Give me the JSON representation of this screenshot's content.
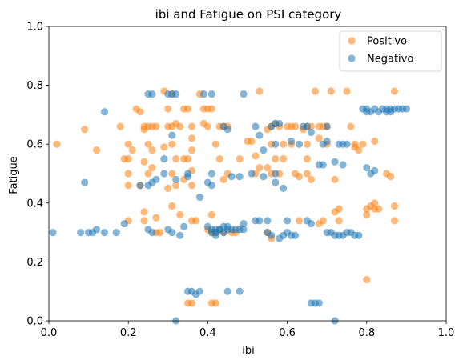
{
  "chart_data": {
    "type": "scatter",
    "title": "ibi and Fatigue on PSI category",
    "xlabel": "ibi",
    "ylabel": "Fatigue",
    "xlim": [
      0,
      1
    ],
    "ylim": [
      0,
      1
    ],
    "xticks": [
      "0.0",
      "0.2",
      "0.4",
      "0.6",
      "0.8",
      "1.0"
    ],
    "yticks": [
      "0.0",
      "0.2",
      "0.4",
      "0.6",
      "0.8",
      "1.0"
    ],
    "grid": false,
    "legend_position": "top-right",
    "series": [
      {
        "name": "Positivo",
        "color": "#ff7f0e",
        "points": [
          [
            0.02,
            0.6
          ],
          [
            0.09,
            0.65
          ],
          [
            0.12,
            0.58
          ],
          [
            0.18,
            0.66
          ],
          [
            0.19,
            0.55
          ],
          [
            0.2,
            0.55
          ],
          [
            0.2,
            0.6
          ],
          [
            0.21,
            0.58
          ],
          [
            0.2,
            0.5
          ],
          [
            0.2,
            0.46
          ],
          [
            0.2,
            0.34
          ],
          [
            0.22,
            0.72
          ],
          [
            0.23,
            0.71
          ],
          [
            0.24,
            0.66
          ],
          [
            0.24,
            0.65
          ],
          [
            0.25,
            0.66
          ],
          [
            0.26,
            0.66
          ],
          [
            0.27,
            0.66
          ],
          [
            0.25,
            0.6
          ],
          [
            0.26,
            0.58
          ],
          [
            0.24,
            0.54
          ],
          [
            0.25,
            0.5
          ],
          [
            0.26,
            0.52
          ],
          [
            0.23,
            0.46
          ],
          [
            0.24,
            0.37
          ],
          [
            0.24,
            0.34
          ],
          [
            0.27,
            0.35
          ],
          [
            0.27,
            0.3
          ],
          [
            0.28,
            0.3
          ],
          [
            0.29,
            0.78
          ],
          [
            0.31,
            0.77
          ],
          [
            0.3,
            0.72
          ],
          [
            0.3,
            0.66
          ],
          [
            0.31,
            0.66
          ],
          [
            0.32,
            0.67
          ],
          [
            0.31,
            0.6
          ],
          [
            0.32,
            0.55
          ],
          [
            0.29,
            0.59
          ],
          [
            0.3,
            0.45
          ],
          [
            0.31,
            0.5
          ],
          [
            0.32,
            0.46
          ],
          [
            0.31,
            0.39
          ],
          [
            0.33,
            0.36
          ],
          [
            0.33,
            0.66
          ],
          [
            0.34,
            0.72
          ],
          [
            0.35,
            0.72
          ],
          [
            0.36,
            0.66
          ],
          [
            0.36,
            0.62
          ],
          [
            0.36,
            0.58
          ],
          [
            0.34,
            0.55
          ],
          [
            0.35,
            0.55
          ],
          [
            0.36,
            0.51
          ],
          [
            0.34,
            0.48
          ],
          [
            0.36,
            0.46
          ],
          [
            0.36,
            0.34
          ],
          [
            0.37,
            0.34
          ],
          [
            0.35,
            0.06
          ],
          [
            0.36,
            0.06
          ],
          [
            0.38,
            0.77
          ],
          [
            0.39,
            0.72
          ],
          [
            0.4,
            0.72
          ],
          [
            0.41,
            0.72
          ],
          [
            0.39,
            0.67
          ],
          [
            0.4,
            0.66
          ],
          [
            0.41,
            0.36
          ],
          [
            0.4,
            0.31
          ],
          [
            0.41,
            0.3
          ],
          [
            0.42,
            0.3
          ],
          [
            0.41,
            0.06
          ],
          [
            0.42,
            0.06
          ],
          [
            0.43,
            0.66
          ],
          [
            0.44,
            0.66
          ],
          [
            0.45,
            0.66
          ],
          [
            0.42,
            0.6
          ],
          [
            0.43,
            0.55
          ],
          [
            0.44,
            0.48
          ],
          [
            0.45,
            0.5
          ],
          [
            0.44,
            0.3
          ],
          [
            0.46,
            0.3
          ],
          [
            0.47,
            0.3
          ],
          [
            0.48,
            0.55
          ],
          [
            0.5,
            0.61
          ],
          [
            0.51,
            0.61
          ],
          [
            0.52,
            0.56
          ],
          [
            0.52,
            0.5
          ],
          [
            0.53,
            0.52
          ],
          [
            0.53,
            0.78
          ],
          [
            0.55,
            0.65
          ],
          [
            0.56,
            0.66
          ],
          [
            0.57,
            0.67
          ],
          [
            0.56,
            0.6
          ],
          [
            0.57,
            0.55
          ],
          [
            0.55,
            0.52
          ],
          [
            0.56,
            0.5
          ],
          [
            0.55,
            0.3
          ],
          [
            0.56,
            0.28
          ],
          [
            0.58,
            0.66
          ],
          [
            0.59,
            0.6
          ],
          [
            0.59,
            0.55
          ],
          [
            0.58,
            0.5
          ],
          [
            0.6,
            0.66
          ],
          [
            0.61,
            0.66
          ],
          [
            0.61,
            0.6
          ],
          [
            0.62,
            0.66
          ],
          [
            0.62,
            0.5
          ],
          [
            0.63,
            0.49
          ],
          [
            0.63,
            0.34
          ],
          [
            0.64,
            0.65
          ],
          [
            0.65,
            0.66
          ],
          [
            0.66,
            0.66
          ],
          [
            0.65,
            0.6
          ],
          [
            0.65,
            0.55
          ],
          [
            0.65,
            0.5
          ],
          [
            0.66,
            0.48
          ],
          [
            0.67,
            0.78
          ],
          [
            0.68,
            0.66
          ],
          [
            0.68,
            0.62
          ],
          [
            0.69,
            0.66
          ],
          [
            0.7,
            0.66
          ],
          [
            0.69,
            0.34
          ],
          [
            0.68,
            0.33
          ],
          [
            0.7,
            0.6
          ],
          [
            0.71,
            0.78
          ],
          [
            0.72,
            0.48
          ],
          [
            0.72,
            0.37
          ],
          [
            0.73,
            0.38
          ],
          [
            0.73,
            0.34
          ],
          [
            0.75,
            0.78
          ],
          [
            0.76,
            0.66
          ],
          [
            0.77,
            0.6
          ],
          [
            0.77,
            0.59
          ],
          [
            0.78,
            0.58
          ],
          [
            0.79,
            0.6
          ],
          [
            0.8,
            0.38
          ],
          [
            0.8,
            0.36
          ],
          [
            0.81,
            0.39
          ],
          [
            0.82,
            0.38
          ],
          [
            0.82,
            0.4
          ],
          [
            0.83,
            0.38
          ],
          [
            0.8,
            0.14
          ],
          [
            0.82,
            0.61
          ],
          [
            0.85,
            0.5
          ],
          [
            0.86,
            0.49
          ],
          [
            0.87,
            0.78
          ],
          [
            0.87,
            0.39
          ],
          [
            0.87,
            0.34
          ]
        ]
      },
      {
        "name": "Negativo",
        "color": "#1f77b4",
        "points": [
          [
            0.01,
            0.3
          ],
          [
            0.08,
            0.3
          ],
          [
            0.09,
            0.47
          ],
          [
            0.1,
            0.3
          ],
          [
            0.11,
            0.3
          ],
          [
            0.12,
            0.31
          ],
          [
            0.14,
            0.3
          ],
          [
            0.14,
            0.71
          ],
          [
            0.17,
            0.3
          ],
          [
            0.19,
            0.33
          ],
          [
            0.23,
            0.46
          ],
          [
            0.25,
            0.77
          ],
          [
            0.26,
            0.77
          ],
          [
            0.25,
            0.46
          ],
          [
            0.26,
            0.47
          ],
          [
            0.27,
            0.48
          ],
          [
            0.25,
            0.31
          ],
          [
            0.26,
            0.3
          ],
          [
            0.29,
            0.55
          ],
          [
            0.29,
            0.5
          ],
          [
            0.3,
            0.77
          ],
          [
            0.31,
            0.77
          ],
          [
            0.32,
            0.77
          ],
          [
            0.31,
            0.63
          ],
          [
            0.32,
            0.48
          ],
          [
            0.3,
            0.31
          ],
          [
            0.31,
            0.3
          ],
          [
            0.33,
            0.29
          ],
          [
            0.32,
            0.0
          ],
          [
            0.34,
            0.32
          ],
          [
            0.35,
            0.5
          ],
          [
            0.35,
            0.49
          ],
          [
            0.35,
            0.1
          ],
          [
            0.36,
            0.1
          ],
          [
            0.37,
            0.09
          ],
          [
            0.38,
            0.42
          ],
          [
            0.38,
            0.1
          ],
          [
            0.39,
            0.77
          ],
          [
            0.4,
            0.47
          ],
          [
            0.4,
            0.32
          ],
          [
            0.41,
            0.31
          ],
          [
            0.41,
            0.3
          ],
          [
            0.41,
            0.77
          ],
          [
            0.42,
            0.31
          ],
          [
            0.42,
            0.3
          ],
          [
            0.42,
            0.29
          ],
          [
            0.43,
            0.31
          ],
          [
            0.41,
            0.46
          ],
          [
            0.41,
            0.5
          ],
          [
            0.43,
            0.31
          ],
          [
            0.44,
            0.32
          ],
          [
            0.44,
            0.3
          ],
          [
            0.44,
            0.66
          ],
          [
            0.45,
            0.65
          ],
          [
            0.45,
            0.32
          ],
          [
            0.45,
            0.31
          ],
          [
            0.46,
            0.49
          ],
          [
            0.46,
            0.31
          ],
          [
            0.47,
            0.31
          ],
          [
            0.48,
            0.31
          ],
          [
            0.48,
            0.49
          ],
          [
            0.49,
            0.33
          ],
          [
            0.49,
            0.31
          ],
          [
            0.45,
            0.1
          ],
          [
            0.48,
            0.1
          ],
          [
            0.49,
            0.77
          ],
          [
            0.51,
            0.5
          ],
          [
            0.52,
            0.66
          ],
          [
            0.52,
            0.34
          ],
          [
            0.53,
            0.63
          ],
          [
            0.53,
            0.34
          ],
          [
            0.54,
            0.58
          ],
          [
            0.54,
            0.49
          ],
          [
            0.55,
            0.34
          ],
          [
            0.55,
            0.3
          ],
          [
            0.56,
            0.29
          ],
          [
            0.56,
            0.66
          ],
          [
            0.57,
            0.67
          ],
          [
            0.58,
            0.67
          ],
          [
            0.57,
            0.6
          ],
          [
            0.57,
            0.5
          ],
          [
            0.57,
            0.47
          ],
          [
            0.58,
            0.28
          ],
          [
            0.59,
            0.29
          ],
          [
            0.59,
            0.45
          ],
          [
            0.6,
            0.34
          ],
          [
            0.6,
            0.3
          ],
          [
            0.61,
            0.61
          ],
          [
            0.61,
            0.29
          ],
          [
            0.62,
            0.29
          ],
          [
            0.63,
            0.6
          ],
          [
            0.64,
            0.66
          ],
          [
            0.65,
            0.66
          ],
          [
            0.66,
            0.64
          ],
          [
            0.65,
            0.34
          ],
          [
            0.66,
            0.33
          ],
          [
            0.66,
            0.06
          ],
          [
            0.67,
            0.06
          ],
          [
            0.68,
            0.06
          ],
          [
            0.68,
            0.53
          ],
          [
            0.69,
            0.53
          ],
          [
            0.69,
            0.6
          ],
          [
            0.7,
            0.66
          ],
          [
            0.7,
            0.61
          ],
          [
            0.7,
            0.3
          ],
          [
            0.71,
            0.3
          ],
          [
            0.72,
            0.29
          ],
          [
            0.72,
            0.54
          ],
          [
            0.73,
            0.6
          ],
          [
            0.73,
            0.29
          ],
          [
            0.74,
            0.53
          ],
          [
            0.74,
            0.29
          ],
          [
            0.74,
            0.6
          ],
          [
            0.75,
            0.6
          ],
          [
            0.75,
            0.3
          ],
          [
            0.76,
            0.3
          ],
          [
            0.77,
            0.29
          ],
          [
            0.78,
            0.29
          ],
          [
            0.72,
            0.0
          ],
          [
            0.79,
            0.72
          ],
          [
            0.8,
            0.72
          ],
          [
            0.8,
            0.71
          ],
          [
            0.81,
            0.71
          ],
          [
            0.82,
            0.72
          ],
          [
            0.83,
            0.71
          ],
          [
            0.84,
            0.72
          ],
          [
            0.85,
            0.71
          ],
          [
            0.85,
            0.72
          ],
          [
            0.86,
            0.72
          ],
          [
            0.86,
            0.71
          ],
          [
            0.87,
            0.72
          ],
          [
            0.88,
            0.72
          ],
          [
            0.89,
            0.72
          ],
          [
            0.9,
            0.72
          ],
          [
            0.8,
            0.52
          ],
          [
            0.81,
            0.5
          ],
          [
            0.82,
            0.51
          ]
        ]
      }
    ]
  }
}
